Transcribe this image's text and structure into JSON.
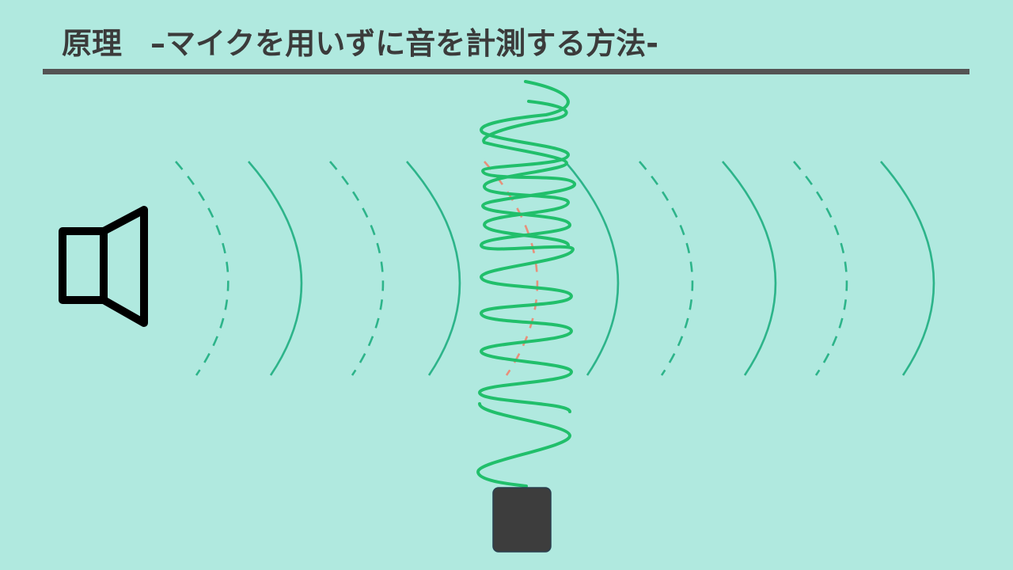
{
  "slide": {
    "title_main": "原理",
    "title_sub": "–マイクを用いずに音を計測する方法-"
  },
  "colors": {
    "background": "#b0e9df",
    "wave_front": "#2db48a",
    "vibration_line": "#21bf6b",
    "reference_wave": "#e8907a",
    "speaker": "#000000",
    "sensor": "#3d3d3d",
    "title_text": "#3b3b3b",
    "rule": "#545454"
  },
  "icons": {
    "source": "speaker-icon",
    "sensor": "sensor-box"
  },
  "waves": {
    "pattern": [
      "dashed",
      "solid",
      "dashed",
      "solid",
      "reference-dashed",
      "solid",
      "dashed",
      "solid",
      "dashed",
      "solid"
    ]
  }
}
